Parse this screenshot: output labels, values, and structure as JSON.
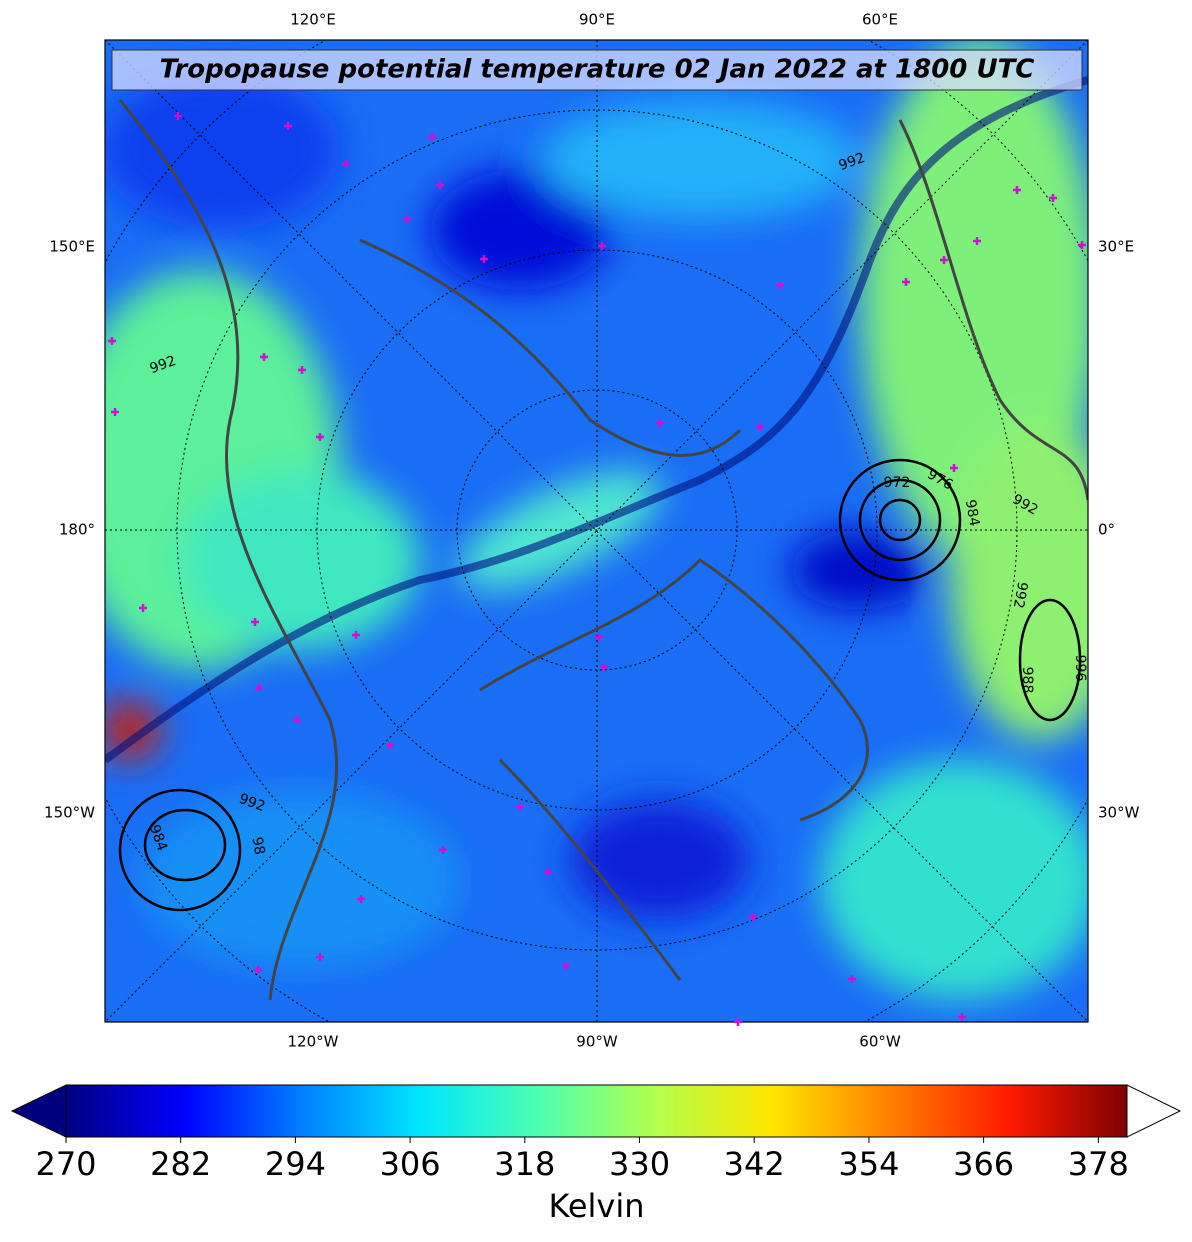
{
  "chart_data": {
    "type": "map",
    "title": "Tropopause potential temperature 02 Jan 2022 at 1800 UTC",
    "top_labels": [
      "120°E",
      "90°E",
      "60°E"
    ],
    "left_labels": [
      "150°E",
      "180°",
      "150°W"
    ],
    "right_labels": [
      "30°E",
      "0°",
      "30°W"
    ],
    "bottom_labels": [
      "120°W",
      "90°W",
      "60°W"
    ],
    "contour_labels": [
      "992",
      "992",
      "972",
      "976",
      "984",
      "992",
      "996",
      "988",
      "992",
      "992",
      "984",
      "98"
    ],
    "colorbar": {
      "label": "Kelvin",
      "lim": [
        270,
        381
      ],
      "ticks": [
        270,
        282,
        294,
        306,
        318,
        330,
        342,
        354,
        366,
        378
      ],
      "colors": [
        "#00007f",
        "#0000ff",
        "#007fff",
        "#00e5ff",
        "#4dffb2",
        "#b2ff4d",
        "#ffe500",
        "#ff7f00",
        "#ff1a00",
        "#7f0000"
      ],
      "extend": "both"
    }
  }
}
